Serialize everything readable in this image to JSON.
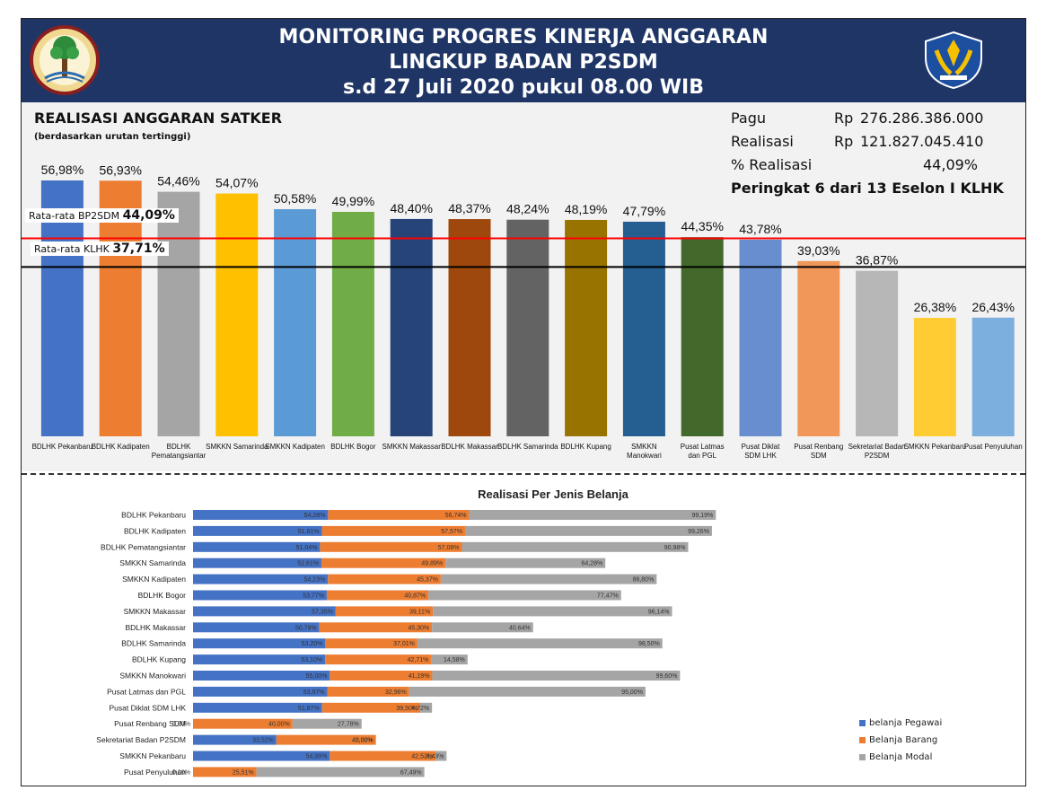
{
  "header": {
    "title_line1": "MONITORING PROGRES KINERJA ANGGARAN",
    "title_line2": "LINGKUP BADAN P2SDM",
    "title_line3": "s.d 27 Juli 2020 pukul 08.00 WIB",
    "logo_left": "klhk-logo-icon",
    "logo_right": "kemenkeu-logo-icon"
  },
  "summary": {
    "pagu_label": "Pagu",
    "pagu_cur": "Rp",
    "pagu_value": "276.286.386.000",
    "realisasi_label": "Realisasi",
    "realisasi_cur": "Rp",
    "realisasi_value": "121.827.045.410",
    "pct_label": "% Realisasi",
    "pct_value": "44,09%",
    "peringkat": "Peringkat 6 dari 13 Eselon I KLHK"
  },
  "colors": {
    "blue": "#4472c4",
    "orange": "#ed7d31",
    "gray": "#a5a5a5",
    "header": "#1f3566",
    "red_line": "#ff0000"
  },
  "chart_data": [
    {
      "type": "bar",
      "title": "REALISASI ANGGARAN SATKER",
      "subtitle": "(berdasarkan urutan tertinggi)",
      "categories": [
        "BDLHK Pekanbaru",
        "BDLHK Kadipaten",
        "BDLHK Pematangsiantar",
        "SMKKN Samarinda",
        "SMKKN Kadipaten",
        "BDLHK Bogor",
        "SMKKN Makassar",
        "BDLHK Makassar",
        "BDLHK Samarinda",
        "BDLHK Kupang",
        "SMKKN Manokwari",
        "Pusat Latmas dan PGL",
        "Pusat Diklat SDM LHK",
        "Pusat Renbang SDM",
        "Sekretariat Badan P2SDM",
        "SMKKN Pekanbaru",
        "Pusat Penyuluhan"
      ],
      "values": [
        56.98,
        56.93,
        54.46,
        54.07,
        50.58,
        49.99,
        48.4,
        48.37,
        48.24,
        48.19,
        47.79,
        44.35,
        43.78,
        39.03,
        36.87,
        26.38,
        26.43
      ],
      "labels": [
        "56,98%",
        "56,93%",
        "54,46%",
        "54,07%",
        "50,58%",
        "49,99%",
        "48,40%",
        "48,37%",
        "48,24%",
        "48,19%",
        "47,79%",
        "44,35%",
        "43,78%",
        "39,03%",
        "36,87%",
        "26,38%",
        "26,43%"
      ],
      "bar_colors": [
        "#4472c4",
        "#ed7d31",
        "#a5a5a5",
        "#ffc000",
        "#5b9bd5",
        "#70ad47",
        "#264478",
        "#9e480e",
        "#636363",
        "#997300",
        "#255e91",
        "#43682b",
        "#698ed0",
        "#f1975a",
        "#b7b7b7",
        "#ffcd33",
        "#7cafdd"
      ],
      "reference_lines": [
        {
          "name": "Rata-rata BP2SDM",
          "value": 44.09,
          "label": "44,09%",
          "color": "#ff0000"
        },
        {
          "name": "Rata-rata KLHK",
          "value": 37.71,
          "label": "37,71%",
          "color": "#000000"
        }
      ],
      "ylim": [
        0,
        60
      ]
    },
    {
      "type": "bar",
      "orientation": "horizontal-stacked",
      "title": "Realisasi Per Jenis Belanja",
      "categories": [
        "BDLHK Pekanbaru",
        "BDLHK Kadipaten",
        "BDLHK Pematangsiantar",
        "SMKKN Samarinda",
        "SMKKN Kadipaten",
        "BDLHK Bogor",
        "SMKKN Makassar",
        "BDLHK Makassar",
        "BDLHK Samarinda",
        "BDLHK Kupang",
        "SMKKN Manokwari",
        "Pusat Latmas dan PGL",
        "Pusat Diklat SDM LHK",
        "Pusat Renbang SDM",
        "Sekretariat Badan P2SDM",
        "SMKKN Pekanbaru",
        "Pusat Penyuluhan"
      ],
      "series": [
        {
          "name": "belanja Pegawai",
          "color": "#4472c4",
          "values": [
            54.28,
            51.81,
            51.04,
            51.61,
            54.23,
            53.77,
            57.35,
            50.79,
            53.2,
            53.1,
            55.0,
            53.97,
            51.87,
            0,
            33.52,
            54.99,
            0
          ],
          "labels": [
            "54,28%",
            "51,81%",
            "51,04%",
            "51,61%",
            "54,23%",
            "53,77%",
            "57,35%",
            "50,79%",
            "53,20%",
            "53,10%",
            "55,00%",
            "53,97%",
            "51,87%",
            "0,00%",
            "33,52%",
            "54,99%",
            "0,00%"
          ]
        },
        {
          "name": "Belanja Barang",
          "color": "#ed7d31",
          "values": [
            56.74,
            57.57,
            57.08,
            49.89,
            45.37,
            40.87,
            39.11,
            45.3,
            37.01,
            42.71,
            41.19,
            32.96,
            39.5,
            40.0,
            40.0,
            42.52,
            25.51
          ],
          "labels": [
            "56,74%",
            "57,57%",
            "57,08%",
            "49,89%",
            "45,37%",
            "40,87%",
            "39,11%",
            "45,30%",
            "37,01%",
            "42,71%",
            "41,19%",
            "32,96%",
            "39,50%",
            "40,00%",
            "40,00%",
            "42,52%",
            "25,51%"
          ]
        },
        {
          "name": "Belanja Modal",
          "color": "#a5a5a5",
          "values": [
            99.19,
            99.26,
            90.98,
            64.28,
            86.8,
            77.47,
            96.14,
            40.64,
            98.5,
            14.58,
            99.6,
            95.0,
            4.72,
            27.78,
            0,
            4.43,
            67.49
          ],
          "labels": [
            "99,19%",
            "99,26%",
            "90,98%",
            "64,28%",
            "86,80%",
            "77,47%",
            "96,14%",
            "40,64%",
            "98,50%",
            "14,58%",
            "99,60%",
            "95,00%",
            "4,72%",
            "27,78%",
            "0,00%",
            "4,43%",
            "67,49%"
          ]
        }
      ],
      "legend_position": "right"
    }
  ]
}
